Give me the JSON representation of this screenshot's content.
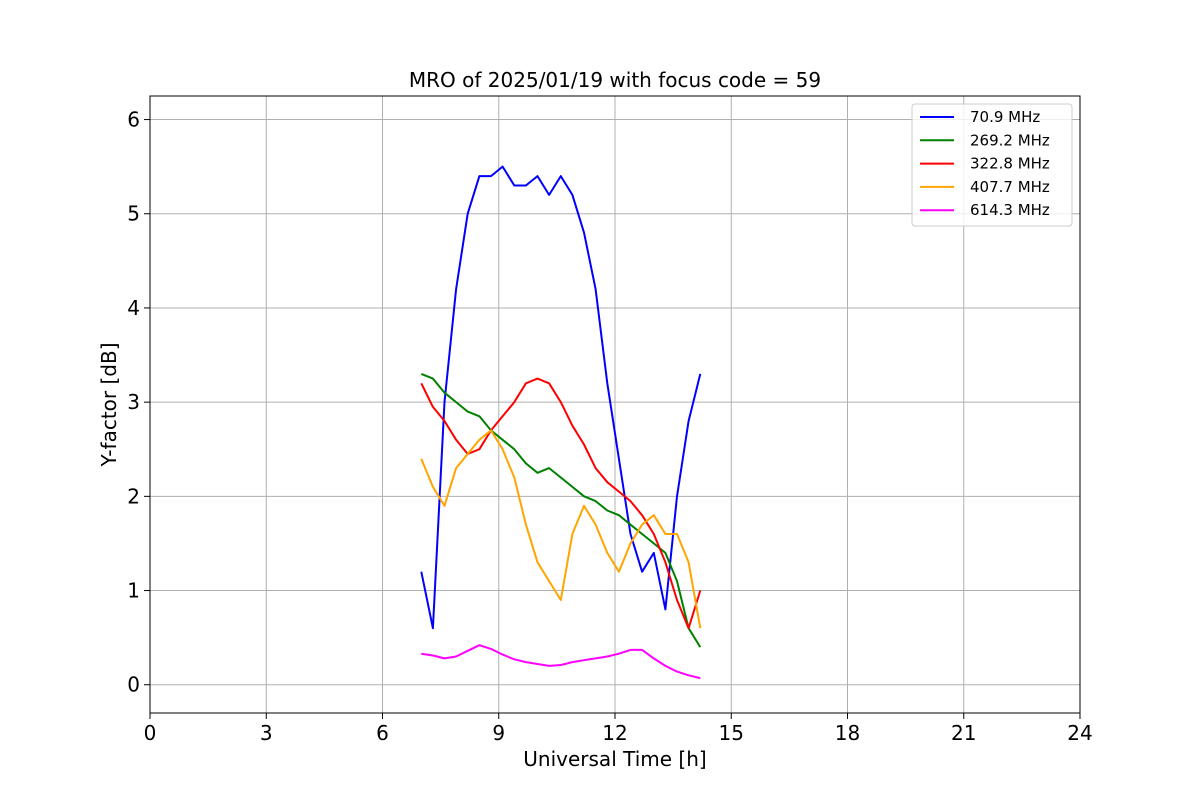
{
  "chart_data": {
    "type": "line",
    "title": "MRO of 2025/01/19 with focus code = 59",
    "xlabel": "Universal Time [h]",
    "ylabel": "Y-factor [dB]",
    "xlim": [
      0,
      24
    ],
    "ylim": [
      -0.3,
      6.25
    ],
    "xticks": [
      0,
      3,
      6,
      9,
      12,
      15,
      18,
      21,
      24
    ],
    "yticks": [
      0,
      1,
      2,
      3,
      4,
      5,
      6
    ],
    "xtick_labels": [
      "0",
      "3",
      "6",
      "9",
      "12",
      "15",
      "18",
      "21",
      "24"
    ],
    "ytick_labels": [
      "0",
      "1",
      "2",
      "3",
      "4",
      "5",
      "6"
    ],
    "grid": true,
    "legend_position": "top-right",
    "series": [
      {
        "name": " 70.9 MHz",
        "color": "#0000ff",
        "x": [
          7.0,
          7.3,
          7.6,
          7.9,
          8.2,
          8.5,
          8.8,
          9.1,
          9.4,
          9.7,
          10.0,
          10.3,
          10.6,
          10.9,
          11.2,
          11.5,
          11.8,
          12.1,
          12.4,
          12.7,
          13.0,
          13.3,
          13.6,
          13.9,
          14.2
        ],
        "y": [
          1.2,
          0.6,
          3.0,
          4.2,
          5.0,
          5.4,
          5.4,
          5.5,
          5.3,
          5.3,
          5.4,
          5.2,
          5.4,
          5.2,
          4.8,
          4.2,
          3.2,
          2.4,
          1.6,
          1.2,
          1.4,
          0.8,
          2.0,
          2.8,
          3.3
        ]
      },
      {
        "name": "269.2 MHz",
        "color": "#008000",
        "x": [
          7.0,
          7.3,
          7.6,
          7.9,
          8.2,
          8.5,
          8.8,
          9.1,
          9.4,
          9.7,
          10.0,
          10.3,
          10.6,
          10.9,
          11.2,
          11.5,
          11.8,
          12.1,
          12.4,
          12.7,
          13.0,
          13.3,
          13.6,
          13.9,
          14.2
        ],
        "y": [
          3.3,
          3.25,
          3.1,
          3.0,
          2.9,
          2.85,
          2.7,
          2.6,
          2.5,
          2.35,
          2.25,
          2.3,
          2.2,
          2.1,
          2.0,
          1.95,
          1.85,
          1.8,
          1.7,
          1.6,
          1.5,
          1.4,
          1.1,
          0.6,
          0.4
        ]
      },
      {
        "name": "322.8 MHz",
        "color": "#ff0000",
        "x": [
          7.0,
          7.3,
          7.6,
          7.9,
          8.2,
          8.5,
          8.8,
          9.1,
          9.4,
          9.7,
          10.0,
          10.3,
          10.6,
          10.9,
          11.2,
          11.5,
          11.8,
          12.1,
          12.4,
          12.7,
          13.0,
          13.3,
          13.6,
          13.9,
          14.2
        ],
        "y": [
          3.2,
          2.95,
          2.8,
          2.6,
          2.45,
          2.5,
          2.7,
          2.85,
          3.0,
          3.2,
          3.25,
          3.2,
          3.0,
          2.75,
          2.55,
          2.3,
          2.15,
          2.05,
          1.95,
          1.8,
          1.6,
          1.3,
          0.9,
          0.6,
          1.0
        ]
      },
      {
        "name": "407.7 MHz",
        "color": "#ffa500",
        "x": [
          7.0,
          7.3,
          7.6,
          7.9,
          8.2,
          8.5,
          8.8,
          9.1,
          9.4,
          9.7,
          10.0,
          10.3,
          10.6,
          10.9,
          11.2,
          11.5,
          11.8,
          12.1,
          12.4,
          12.7,
          13.0,
          13.3,
          13.6,
          13.9,
          14.2
        ],
        "y": [
          2.4,
          2.1,
          1.9,
          2.3,
          2.45,
          2.6,
          2.7,
          2.5,
          2.2,
          1.7,
          1.3,
          1.1,
          0.9,
          1.6,
          1.9,
          1.7,
          1.4,
          1.2,
          1.5,
          1.7,
          1.8,
          1.6,
          1.6,
          1.3,
          0.6
        ]
      },
      {
        "name": "614.3 MHz",
        "color": "#ff00ff",
        "x": [
          7.0,
          7.3,
          7.6,
          7.9,
          8.2,
          8.5,
          8.8,
          9.1,
          9.4,
          9.7,
          10.0,
          10.3,
          10.6,
          10.9,
          11.2,
          11.5,
          11.8,
          12.1,
          12.4,
          12.7,
          13.0,
          13.3,
          13.6,
          13.9,
          14.2
        ],
        "y": [
          0.33,
          0.31,
          0.28,
          0.3,
          0.36,
          0.42,
          0.38,
          0.32,
          0.27,
          0.24,
          0.22,
          0.2,
          0.21,
          0.24,
          0.26,
          0.28,
          0.3,
          0.33,
          0.37,
          0.37,
          0.28,
          0.2,
          0.14,
          0.1,
          0.07
        ]
      }
    ]
  }
}
